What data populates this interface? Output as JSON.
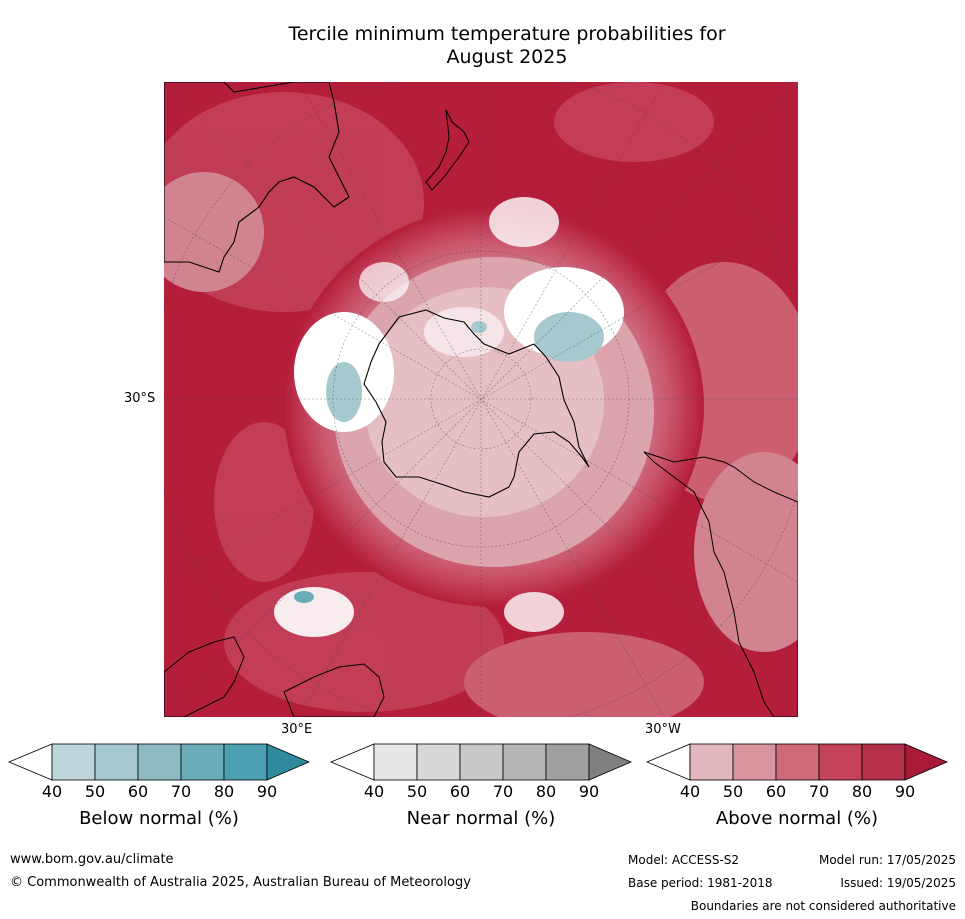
{
  "title": {
    "line1": "Tercile minimum temperature probabilities for",
    "line2": "August 2025"
  },
  "map": {
    "projection": "south-polar stereographic",
    "lat_label": "30°S",
    "lon_labels": {
      "east": "30°E",
      "west": "30°W"
    },
    "colors": {
      "above_90": "#b51e3a",
      "above_80": "#c4435a",
      "above_70": "#cf6a7a",
      "above_60": "#d8959f",
      "above_50": "#e3b7be",
      "near_40": "#ffffff",
      "below_70": "#8fb9c6"
    }
  },
  "colorbars": [
    {
      "name": "below",
      "title": "Below normal (%)",
      "ticks": [
        "40",
        "50",
        "60",
        "70",
        "80",
        "90"
      ],
      "colors": [
        "#ffffff",
        "#bdd5db",
        "#a6c8cf",
        "#8ebac4",
        "#6aacb8",
        "#4aa0b0",
        "#2e8a9c"
      ]
    },
    {
      "name": "near",
      "title": "Near normal (%)",
      "ticks": [
        "40",
        "50",
        "60",
        "70",
        "80",
        "90"
      ],
      "colors": [
        "#ffffff",
        "#e6e6e6",
        "#d8d8d8",
        "#c8c8c8",
        "#b5b5b5",
        "#a0a0a0",
        "#7f7f7f"
      ]
    },
    {
      "name": "above",
      "title": "Above normal (%)",
      "ticks": [
        "40",
        "50",
        "60",
        "70",
        "80",
        "90"
      ],
      "colors": [
        "#ffffff",
        "#e3b7be",
        "#d8959f",
        "#cf6a7a",
        "#c4435a",
        "#b5304a",
        "#a81a35"
      ]
    }
  ],
  "footer": {
    "website": "www.bom.gov.au/climate",
    "copyright": "© Commonwealth of Australia 2025, Australian Bureau of Meteorology",
    "model": "Model: ACCESS-S2",
    "base_period": "Base period: 1981-2018",
    "model_run": "Model run: 17/05/2025",
    "issued": "Issued: 19/05/2025",
    "disclaimer": "Boundaries are not considered authoritative"
  }
}
